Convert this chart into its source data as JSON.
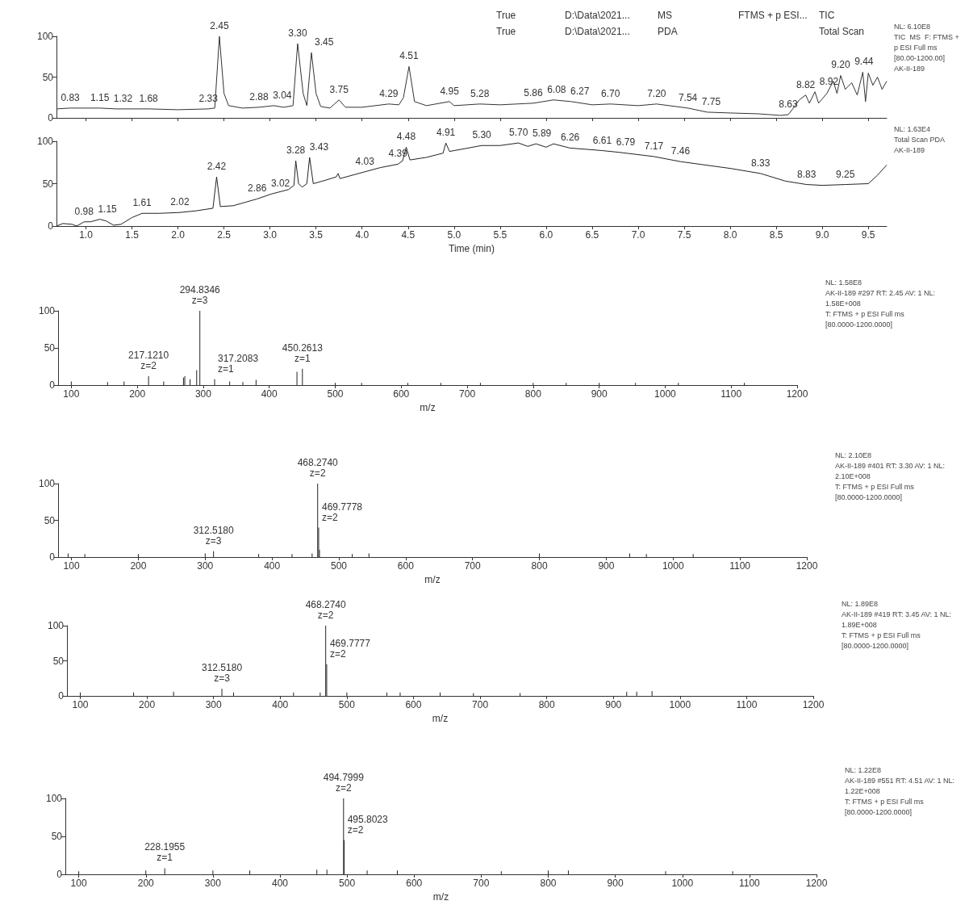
{
  "chart_data": [
    {
      "type": "other",
      "annotations": [
        "True",
        "D:\\Data\\2021...",
        "MS",
        "FTMS + p ESI...",
        "TIC",
        "True",
        "D:\\Data\\2021...",
        "PDA",
        "Total Scan"
      ]
    },
    {
      "type": "line",
      "color": "#333333",
      "tick_labels": "y",
      "xlim": [
        0.68,
        9.7
      ],
      "xticks": [
        {
          "value": 1,
          "label": null
        },
        {
          "value": 1.5,
          "label": null
        },
        {
          "value": 2,
          "label": null
        },
        {
          "value": 2.5,
          "label": null
        },
        {
          "value": 3,
          "label": null
        },
        {
          "value": 3.5,
          "label": null
        },
        {
          "value": 4,
          "label": null
        },
        {
          "value": 4.5,
          "label": null
        },
        {
          "value": 5,
          "label": null
        },
        {
          "value": 5.5,
          "label": null
        },
        {
          "value": 6,
          "label": null
        },
        {
          "value": 6.5,
          "label": null
        },
        {
          "value": 7,
          "label": null
        },
        {
          "value": 7.5,
          "label": null
        },
        {
          "value": 8,
          "label": null
        },
        {
          "value": 8.5,
          "label": null
        },
        {
          "value": 9,
          "label": null
        },
        {
          "value": 9.5,
          "label": null
        }
      ],
      "ylim": [
        0,
        100
      ],
      "yticks": [
        0,
        50,
        100
      ],
      "x": [
        0.68,
        0.83,
        1.15,
        1.32,
        1.68,
        2.0,
        2.33,
        2.4,
        2.45,
        2.5,
        2.55,
        2.7,
        2.88,
        3.04,
        3.15,
        3.25,
        3.3,
        3.36,
        3.4,
        3.45,
        3.5,
        3.55,
        3.65,
        3.75,
        3.82,
        4.0,
        4.29,
        4.4,
        4.45,
        4.51,
        4.57,
        4.7,
        4.95,
        5.0,
        5.28,
        5.5,
        5.86,
        6.08,
        6.27,
        6.5,
        6.7,
        7.0,
        7.2,
        7.54,
        7.75,
        8.0,
        8.3,
        8.55,
        8.63,
        8.7,
        8.75,
        8.82,
        8.86,
        8.92,
        8.96,
        9.05,
        9.12,
        9.16,
        9.2,
        9.25,
        9.32,
        9.38,
        9.44,
        9.47,
        9.5,
        9.55,
        9.6,
        9.65,
        9.7
      ],
      "values": [
        11,
        12,
        12,
        11,
        11,
        10,
        11,
        12,
        100,
        30,
        15,
        12,
        13,
        15,
        13,
        15,
        91,
        30,
        15,
        80,
        30,
        14,
        12,
        22,
        13,
        13,
        17,
        16,
        25,
        63,
        20,
        15,
        20,
        15,
        17,
        16,
        18,
        22,
        20,
        16,
        17,
        15,
        17,
        12,
        7,
        6,
        5,
        3,
        4,
        14,
        22,
        28,
        18,
        32,
        18,
        30,
        45,
        30,
        52,
        35,
        43,
        28,
        56,
        20,
        55,
        40,
        50,
        35,
        45
      ],
      "annotations": [
        {
          "text": "0.83",
          "x": 0.83,
          "y": 12
        },
        {
          "text": "1.15",
          "x": 1.15,
          "y": 12
        },
        {
          "text": "1.32",
          "x": 1.32,
          "y": 11
        },
        {
          "text": "1.68",
          "x": 1.68,
          "y": 11
        },
        {
          "text": "2.33",
          "x": 2.33,
          "y": 11
        },
        {
          "text": "2.45",
          "x": 2.45,
          "y": 100
        },
        {
          "text": "2.88",
          "x": 2.88,
          "y": 13
        },
        {
          "text": "3.04",
          "x": 3.04,
          "y": 15
        },
        {
          "text": "3.30",
          "x": 3.3,
          "y": 91
        },
        {
          "text": "3.45",
          "x": 3.45,
          "y": 80
        },
        {
          "text": "3.75",
          "x": 3.75,
          "y": 22
        },
        {
          "text": "4.29",
          "x": 4.29,
          "y": 17
        },
        {
          "text": "4.51",
          "x": 4.51,
          "y": 63
        },
        {
          "text": "4.95",
          "x": 4.95,
          "y": 20
        },
        {
          "text": "5.28",
          "x": 5.28,
          "y": 17
        },
        {
          "text": "5.86",
          "x": 5.86,
          "y": 18
        },
        {
          "text": "6.08",
          "x": 6.08,
          "y": 22
        },
        {
          "text": "6.27",
          "x": 6.27,
          "y": 20
        },
        {
          "text": "6.70",
          "x": 6.7,
          "y": 17
        },
        {
          "text": "7.20",
          "x": 7.2,
          "y": 17
        },
        {
          "text": "7.54",
          "x": 7.54,
          "y": 12
        },
        {
          "text": "7.75",
          "x": 7.75,
          "y": 7
        },
        {
          "text": "8.63",
          "x": 8.63,
          "y": 4
        },
        {
          "text": "8.82",
          "x": 8.82,
          "y": 28
        },
        {
          "text": "8.92",
          "x": 8.92,
          "y": 32
        },
        {
          "text": "9.20",
          "x": 9.2,
          "y": 52
        },
        {
          "text": "9.44",
          "x": 9.44,
          "y": 56
        },
        "NL: 6.10E8",
        "TIC  MS  F: FTMS +",
        "p ESI Full ms",
        "[80.00-1200.00]",
        "AK-II-189"
      ]
    },
    {
      "type": "line",
      "color": "#222222",
      "xlabel": "Time (min)",
      "xlim": [
        0.68,
        9.7
      ],
      "xticks": [
        {
          "value": 1,
          "label": "1.0"
        },
        {
          "value": 1.5,
          "label": "1.5"
        },
        {
          "value": 2,
          "label": "2.0"
        },
        {
          "value": 2.5,
          "label": "2.5"
        },
        {
          "value": 3,
          "label": "3.0"
        },
        {
          "value": 3.5,
          "label": "3.5"
        },
        {
          "value": 4,
          "label": "4.0"
        },
        {
          "value": 4.5,
          "label": "4.5"
        },
        {
          "value": 5,
          "label": "5.0"
        },
        {
          "value": 5.5,
          "label": "5.5"
        },
        {
          "value": 6,
          "label": "6.0"
        },
        {
          "value": 6.5,
          "label": "6.5"
        },
        {
          "value": 7,
          "label": "7.0"
        },
        {
          "value": 7.5,
          "label": "7.5"
        },
        {
          "value": 8,
          "label": "8.0"
        },
        {
          "value": 8.5,
          "label": "8.5"
        },
        {
          "value": 9,
          "label": "9.0"
        },
        {
          "value": 9.5,
          "label": "9.5"
        }
      ],
      "ylim": [
        0,
        100
      ],
      "yticks": [
        0,
        50,
        100
      ],
      "x": [
        0.68,
        0.75,
        0.85,
        0.9,
        0.98,
        1.05,
        1.15,
        1.22,
        1.3,
        1.38,
        1.5,
        1.61,
        1.8,
        2.02,
        2.2,
        2.38,
        2.42,
        2.46,
        2.6,
        2.86,
        3.02,
        3.2,
        3.26,
        3.28,
        3.31,
        3.35,
        3.4,
        3.43,
        3.47,
        3.6,
        3.72,
        3.74,
        3.76,
        4.03,
        4.2,
        4.39,
        4.44,
        4.48,
        4.52,
        4.7,
        4.88,
        4.91,
        4.95,
        5.3,
        5.5,
        5.7,
        5.8,
        5.89,
        6.0,
        6.08,
        6.26,
        6.5,
        6.61,
        6.79,
        7.17,
        7.46,
        8.0,
        8.33,
        8.6,
        8.83,
        9.0,
        9.25,
        9.5,
        9.6,
        9.7
      ],
      "values": [
        0,
        3,
        2,
        0,
        5,
        5,
        8,
        6,
        1,
        2,
        10,
        15,
        15,
        16,
        18,
        21,
        58,
        23,
        24,
        32,
        38,
        43,
        48,
        77,
        50,
        46,
        50,
        81,
        50,
        54,
        58,
        62,
        56,
        64,
        69,
        73,
        77,
        93,
        78,
        81,
        86,
        98,
        88,
        95,
        95,
        98,
        94,
        97,
        93,
        97,
        92,
        90,
        89,
        87,
        82,
        76,
        68,
        62,
        53,
        49,
        48,
        49,
        50,
        60,
        72
      ],
      "annotations": [
        {
          "text": "0.98",
          "x": 0.98,
          "y": 5
        },
        {
          "text": "1.15",
          "x": 1.15,
          "y": 8
        },
        {
          "text": "1.61",
          "x": 1.61,
          "y": 15
        },
        {
          "text": "2.02",
          "x": 2.02,
          "y": 16
        },
        {
          "text": "2.42",
          "x": 2.42,
          "y": 58
        },
        {
          "text": "2.86",
          "x": 2.86,
          "y": 32
        },
        {
          "text": "3.02",
          "x": 3.02,
          "y": 38
        },
        {
          "text": "3.28",
          "x": 3.28,
          "y": 77
        },
        {
          "text": "3.43",
          "x": 3.43,
          "y": 81
        },
        {
          "text": "4.03",
          "x": 4.03,
          "y": 64
        },
        {
          "text": "4.39",
          "x": 4.39,
          "y": 73
        },
        {
          "text": "4.48",
          "x": 4.48,
          "y": 93
        },
        {
          "text": "4.91",
          "x": 4.91,
          "y": 98
        },
        {
          "text": "5.30",
          "x": 5.3,
          "y": 95
        },
        {
          "text": "5.70",
          "x": 5.7,
          "y": 98
        },
        {
          "text": "5.89",
          "x": 5.89,
          "y": 97
        },
        {
          "text": "6.26",
          "x": 6.26,
          "y": 92
        },
        {
          "text": "6.61",
          "x": 6.61,
          "y": 89
        },
        {
          "text": "6.79",
          "x": 6.79,
          "y": 87
        },
        {
          "text": "7.17",
          "x": 7.17,
          "y": 82
        },
        {
          "text": "7.46",
          "x": 7.46,
          "y": 76
        },
        {
          "text": "8.33",
          "x": 8.33,
          "y": 62
        },
        {
          "text": "8.83",
          "x": 8.83,
          "y": 49
        },
        {
          "text": "9.25",
          "x": 9.25,
          "y": 49
        },
        "NL: 1.63E4",
        "Total Scan PDA",
        "AK-II-189"
      ]
    },
    {
      "type": "bar",
      "color": "#222222",
      "xlabel": "m/z",
      "xlim": [
        80,
        1200
      ],
      "xticks": [
        100,
        200,
        300,
        400,
        500,
        600,
        700,
        800,
        900,
        1000,
        1100,
        1200
      ],
      "ylim": [
        0,
        100
      ],
      "yticks": [
        0,
        50,
        100
      ],
      "x": [
        100,
        155,
        180,
        217.121,
        240,
        270,
        272,
        280,
        290,
        294.8346,
        317.2083,
        340,
        360,
        380,
        442,
        450.2613,
        500,
        540,
        610,
        660,
        720,
        800,
        850,
        900,
        955,
        1020,
        1120
      ],
      "values": [
        5,
        4,
        5,
        12,
        5,
        10,
        12,
        8,
        20,
        100,
        8,
        5,
        4,
        7,
        18,
        22,
        3,
        3,
        3,
        3,
        3,
        3,
        3,
        3,
        3,
        3,
        3
      ],
      "annotations": [
        {
          "text": "217.1210",
          "x": 217.121,
          "y": 12
        },
        {
          "text": "z=2",
          "x": 217.121,
          "y": 12
        },
        {
          "text": "294.8346",
          "x": 294.8346,
          "y": 100
        },
        {
          "text": "z=3",
          "x": 294.8346,
          "y": 100
        },
        {
          "text": "317.2083",
          "x": 317.2083,
          "y": 8
        },
        {
          "text": "z=1",
          "x": 317.2083,
          "y": 8
        },
        {
          "text": "450.2613",
          "x": 450.2613,
          "y": 22
        },
        {
          "text": "z=1",
          "x": 450.2613,
          "y": 22
        },
        "NL: 1.58E8",
        "AK-II-189 #297 RT: 2.45 AV: 1 NL:",
        "1.58E+008",
        "T: FTMS + p ESI Full ms",
        "[80.0000-1200.0000]"
      ]
    },
    {
      "type": "bar",
      "color": "#222222",
      "xlabel": "m/z",
      "xlim": [
        80,
        1200
      ],
      "xticks": [
        100,
        200,
        300,
        400,
        500,
        600,
        700,
        800,
        900,
        1000,
        1100,
        1200
      ],
      "ylim": [
        0,
        100
      ],
      "yticks": [
        0,
        50,
        100
      ],
      "x": [
        95,
        120,
        200,
        300,
        312.518,
        380,
        430,
        460,
        468.274,
        469.7778,
        471,
        520,
        545,
        800,
        935,
        960,
        1030
      ],
      "values": [
        5,
        4,
        4,
        5,
        8,
        4,
        4,
        5,
        100,
        40,
        10,
        4,
        5,
        5,
        5,
        4,
        4
      ],
      "annotations": [
        {
          "text": "312.5180",
          "x": 312.518,
          "y": 8
        },
        {
          "text": "z=3",
          "x": 312.518,
          "y": 8
        },
        {
          "text": "468.2740",
          "x": 468.274,
          "y": 100
        },
        {
          "text": "z=2",
          "x": 468.274,
          "y": 100
        },
        {
          "text": "469.7778",
          "x": 469.7778,
          "y": 40
        },
        {
          "text": "z=2",
          "x": 469.7778,
          "y": 40
        },
        "NL: 2.10E8",
        "AK-II-189 #401 RT: 3.30 AV: 1 NL:",
        "2.10E+008",
        "T: FTMS + p ESI Full ms",
        "[80.0000-1200.0000]"
      ]
    },
    {
      "type": "bar",
      "color": "#222222",
      "xlabel": "m/z",
      "xlim": [
        80,
        1200
      ],
      "xticks": [
        100,
        200,
        300,
        400,
        500,
        600,
        700,
        800,
        900,
        1000,
        1100,
        1200
      ],
      "ylim": [
        0,
        100
      ],
      "yticks": [
        0,
        50,
        100
      ],
      "x": [
        100,
        180,
        240,
        312.518,
        330,
        420,
        460,
        468.274,
        469.7777,
        500,
        560,
        580,
        640,
        690,
        760,
        920,
        935,
        958
      ],
      "values": [
        5,
        5,
        6,
        10,
        5,
        5,
        5,
        100,
        45,
        5,
        5,
        5,
        5,
        4,
        4,
        6,
        6,
        7
      ],
      "annotations": [
        {
          "text": "312.5180",
          "x": 312.518,
          "y": 10
        },
        {
          "text": "z=3",
          "x": 312.518,
          "y": 10
        },
        {
          "text": "468.2740",
          "x": 468.274,
          "y": 100
        },
        {
          "text": "z=2",
          "x": 468.274,
          "y": 100
        },
        {
          "text": "469.7777",
          "x": 469.7777,
          "y": 45
        },
        {
          "text": "z=2",
          "x": 469.7777,
          "y": 45
        },
        "NL: 1.89E8",
        "AK-II-189 #419 RT: 3.45 AV: 1 NL:",
        "1.89E+008",
        "T: FTMS + p ESI Full ms",
        "[80.0000-1200.0000]"
      ]
    },
    {
      "type": "bar",
      "color": "#222222",
      "xlabel": "m/z",
      "xlim": [
        80,
        1200
      ],
      "xticks": [
        100,
        200,
        300,
        400,
        500,
        600,
        700,
        800,
        900,
        1000,
        1100,
        1200
      ],
      "ylim": [
        0,
        100
      ],
      "yticks": [
        0,
        50,
        100
      ],
      "x": [
        100,
        200,
        228.1955,
        300,
        355,
        455,
        470,
        494.7999,
        495.8023,
        530,
        575,
        730,
        800,
        830,
        975,
        1075
      ],
      "values": [
        4,
        5,
        8,
        5,
        5,
        6,
        6,
        100,
        45,
        5,
        5,
        4,
        5,
        5,
        4,
        4
      ],
      "annotations": [
        {
          "text": "228.1955",
          "x": 228.1955,
          "y": 8
        },
        {
          "text": "z=1",
          "x": 228.1955,
          "y": 8
        },
        {
          "text": "494.7999",
          "x": 494.7999,
          "y": 100
        },
        {
          "text": "z=2",
          "x": 494.7999,
          "y": 100
        },
        {
          "text": "495.8023",
          "x": 495.8023,
          "y": 45
        },
        {
          "text": "z=2",
          "x": 495.8023,
          "y": 45
        },
        "NL: 1.22E8",
        "AK-II-189 #551 RT: 4.51 AV: 1 NL:",
        "1.22E+008",
        "T: FTMS + p ESI Full ms",
        "[80.0000-1200.0000]"
      ]
    }
  ]
}
